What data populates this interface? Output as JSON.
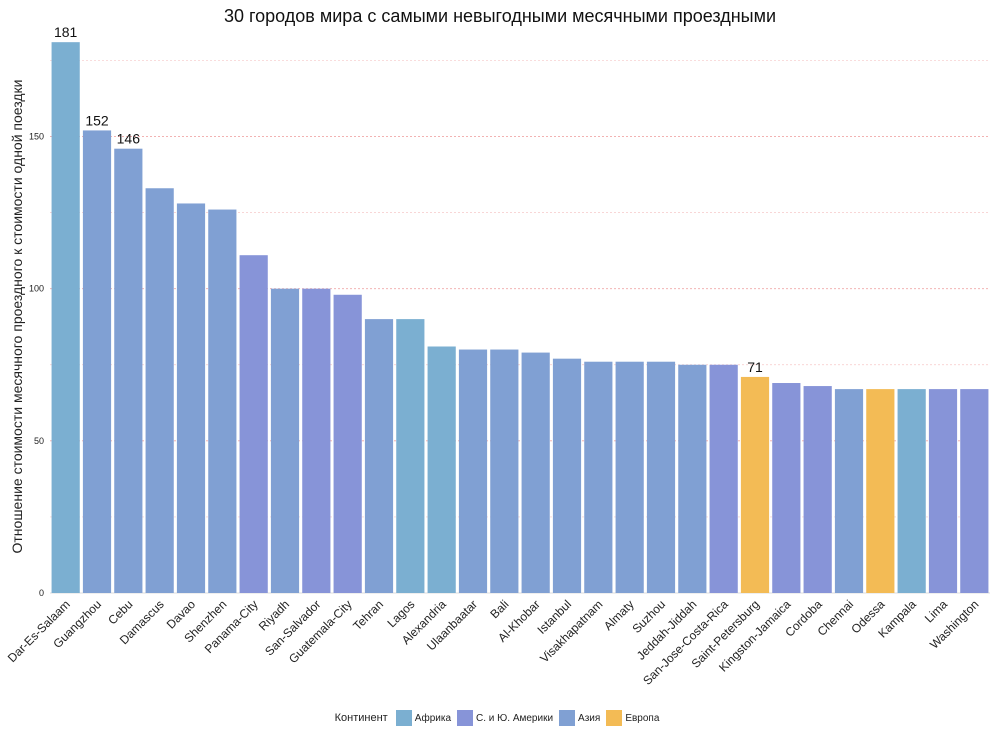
{
  "chart_data": {
    "type": "bar",
    "title": "30 городов мира с самыми невыгодными месячными проездными",
    "xlabel": "",
    "ylabel": "Отношение стоимости месячного проездного к стоимости одной поездки",
    "ylim": [
      0,
      185
    ],
    "yticks": [
      0,
      50,
      100,
      150
    ],
    "grid": true,
    "legend_position": "bottom",
    "legend_title": "Континент",
    "groups": [
      {
        "name": "Африка",
        "color": "#7BAFD1"
      },
      {
        "name": "С. и Ю. Америки",
        "color": "#8794D8"
      },
      {
        "name": "Азия",
        "color": "#80A0D3"
      },
      {
        "name": "Европа",
        "color": "#F3BB55"
      }
    ],
    "categories": [
      "Dar-Es-Salaam",
      "Guangzhou",
      "Cebu",
      "Damascus",
      "Davao",
      "Shenzhen",
      "Panama-City",
      "Riyadh",
      "San-Salvador",
      "Guatemala-City",
      "Tehran",
      "Lagos",
      "Alexandria",
      "Ulaanbaatar",
      "Bali",
      "Al-Khobar",
      "Istanbul",
      "Visakhapatnam",
      "Almaty",
      "Suzhou",
      "Jeddah-Jiddah",
      "San-Jose-Costa-Rica",
      "Saint-Petersburg",
      "Kingston-Jamaica",
      "Cordoba",
      "Chennai",
      "Odessa",
      "Kampala",
      "Lima",
      "Washington"
    ],
    "values": [
      181,
      152,
      146,
      133,
      128,
      126,
      111,
      100,
      100,
      98,
      90,
      90,
      81,
      80,
      80,
      79,
      77,
      76,
      76,
      76,
      75,
      75,
      71,
      69,
      68,
      67,
      67,
      67,
      67,
      67
    ],
    "continents": [
      "Африка",
      "Азия",
      "Азия",
      "Азия",
      "Азия",
      "Азия",
      "С. и Ю. Америки",
      "Азия",
      "С. и Ю. Америки",
      "С. и Ю. Америки",
      "Азия",
      "Африка",
      "Африка",
      "Азия",
      "Азия",
      "Азия",
      "Азия",
      "Азия",
      "Азия",
      "Азия",
      "Азия",
      "С. и Ю. Америки",
      "Европа",
      "С. и Ю. Америки",
      "С. и Ю. Америки",
      "Азия",
      "Европа",
      "Африка",
      "С. и Ю. Америки",
      "С. и Ю. Америки"
    ],
    "data_labels": [
      {
        "category": "Dar-Es-Salaam",
        "text": "181"
      },
      {
        "category": "Guangzhou",
        "text": "152"
      },
      {
        "category": "Cebu",
        "text": "146"
      },
      {
        "category": "Saint-Petersburg",
        "text": "71"
      }
    ]
  }
}
